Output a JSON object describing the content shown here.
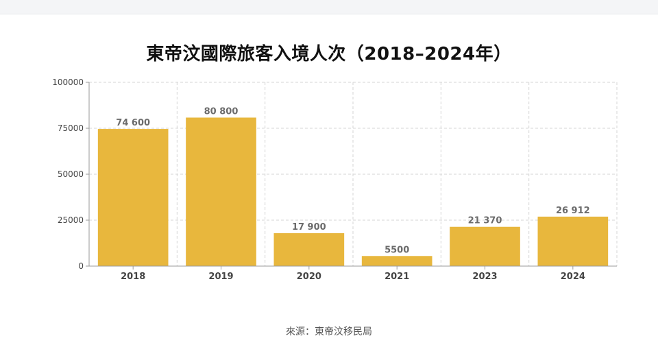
{
  "chart_data": {
    "type": "bar",
    "title": "東帝汶國際旅客入境人次（2018–2024年）",
    "categories": [
      "2018",
      "2019",
      "2020",
      "2021",
      "2023",
      "2024"
    ],
    "values": [
      74600,
      80800,
      17900,
      5500,
      21370,
      26912
    ],
    "value_labels": [
      "74 600",
      "80 800",
      "17 900",
      "5500",
      "21 370",
      "26 912"
    ],
    "ylim": [
      0,
      100000
    ],
    "yticks": [
      0,
      25000,
      50000,
      75000,
      100000
    ],
    "ytick_labels": [
      "0",
      "25000",
      "50000",
      "75000",
      "100000"
    ],
    "xlabel": "",
    "ylabel": "",
    "grid": true,
    "bar_color": "#e8b73d",
    "source": "來源：東帝汶移民局"
  }
}
